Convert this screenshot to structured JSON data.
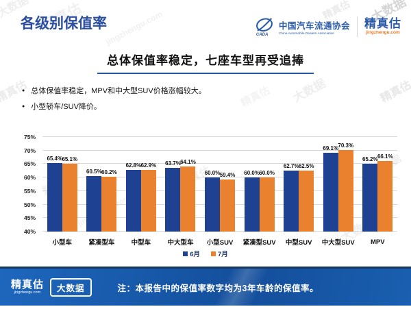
{
  "page": {
    "title": "各级别保值率"
  },
  "header": {
    "cada_name": "中国汽车流通协会",
    "cada_sub": "China Automobile Dealers Association",
    "cada_abbr": "CADA",
    "jzg_name": "精真估",
    "jzg_domain": "jingzhengu.com"
  },
  "headline": "总体保值率稳定，七座车型再受追捧",
  "bullets": [
    "总体保值率稳定，MPV和中大型SUV价格涨幅较大。",
    "小型轿车/SUV降价。"
  ],
  "chart_data": {
    "type": "bar",
    "categories": [
      "小型车",
      "紧凑型车",
      "中型车",
      "中大型车",
      "小型SUV",
      "紧凑型SUV",
      "中型SUV",
      "中大型SUV",
      "MPV"
    ],
    "series": [
      {
        "name": "6月",
        "color": "#1E4191",
        "values": [
          65.4,
          60.5,
          62.8,
          63.7,
          60.0,
          60.0,
          62.7,
          69.1,
          65.2
        ]
      },
      {
        "name": "7月",
        "color": "#E9812E",
        "values": [
          65.1,
          60.2,
          62.9,
          64.1,
          59.4,
          60.0,
          62.5,
          70.3,
          66.1
        ]
      }
    ],
    "ylim": [
      40,
      75
    ],
    "ytick_step": 5,
    "ytick_suffix": "%",
    "grid": true,
    "legend_position": "bottom",
    "value_label_suffix": "%"
  },
  "footer": {
    "logo": "精真估",
    "logo_domain": "jingzhengu.com",
    "badge": "大数据",
    "note": "注：本报告中的保值率数字均为3年车龄的保值率。"
  },
  "watermark": {
    "texts": [
      "精真估",
      "大数据",
      "jingzhengu.com"
    ]
  },
  "colors": {
    "title_blue": "#2B4EA0",
    "accent_blue": "#2456A8",
    "bar_blue": "#1E4191",
    "bar_orange": "#E9812E",
    "footer_navy": "#17365D",
    "footer_blue": "#1A5FB0",
    "domain_orange": "#E87722"
  }
}
